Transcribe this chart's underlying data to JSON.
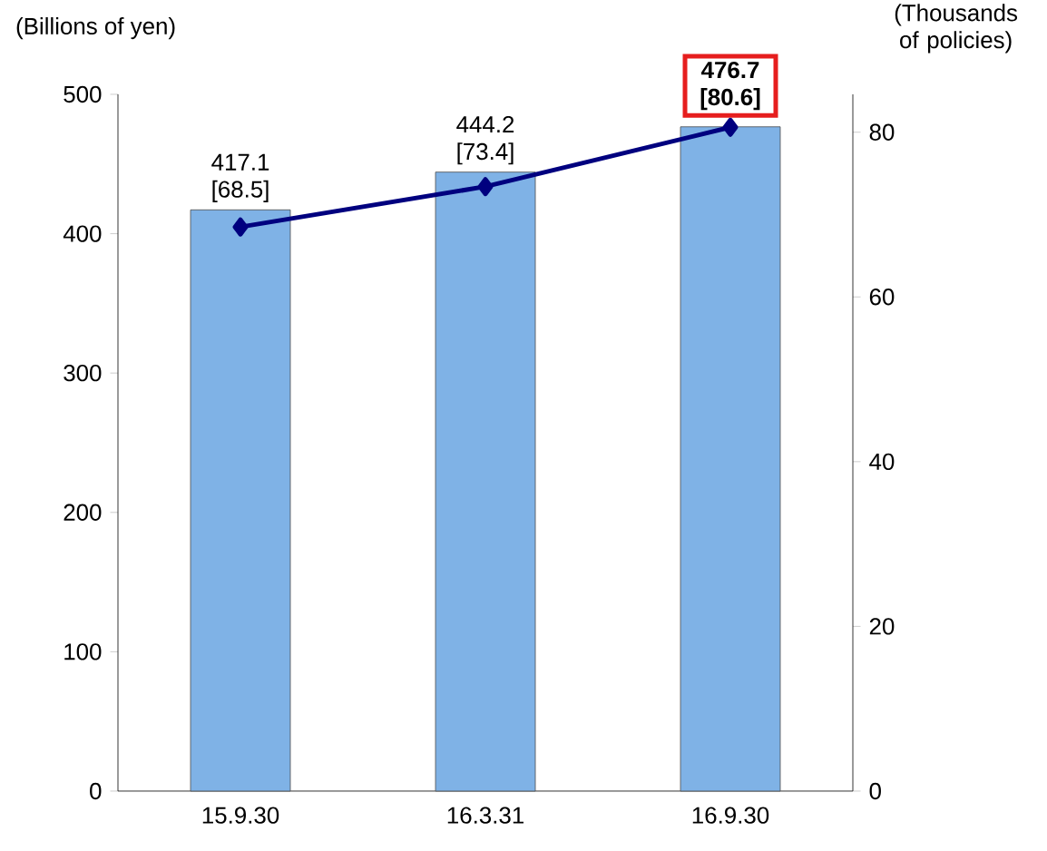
{
  "chart_data": {
    "type": "bar",
    "ylabel": "(Billions of yen)",
    "y2label": "(Thousands of policies)",
    "categories": [
      "15.9.30",
      "16.3.31",
      "16.9.30"
    ],
    "series": [
      {
        "color": "#7fb2e6",
        "values": [
          417.1,
          444.2,
          476.7
        ],
        "value_labels": [
          "417.1",
          "444.2",
          null
        ]
      },
      {
        "type": "line",
        "axis": "y2",
        "color": "#00007f",
        "marker": "diamond",
        "values": [
          68.5,
          73.4,
          80.6
        ],
        "value_labels": [
          "[68.5]",
          "[73.4]",
          null
        ]
      }
    ],
    "ylim": [
      0,
      500
    ],
    "yticks": [
      0,
      100,
      200,
      300,
      400,
      500
    ],
    "y2lim": [
      0,
      84.6
    ],
    "y2ticks": [
      0,
      20,
      40,
      60,
      80
    ],
    "annotations": [
      {
        "text": "476.7 [80.6]",
        "x": "16.9.30",
        "y": 476.7
      }
    ],
    "grid": false
  }
}
